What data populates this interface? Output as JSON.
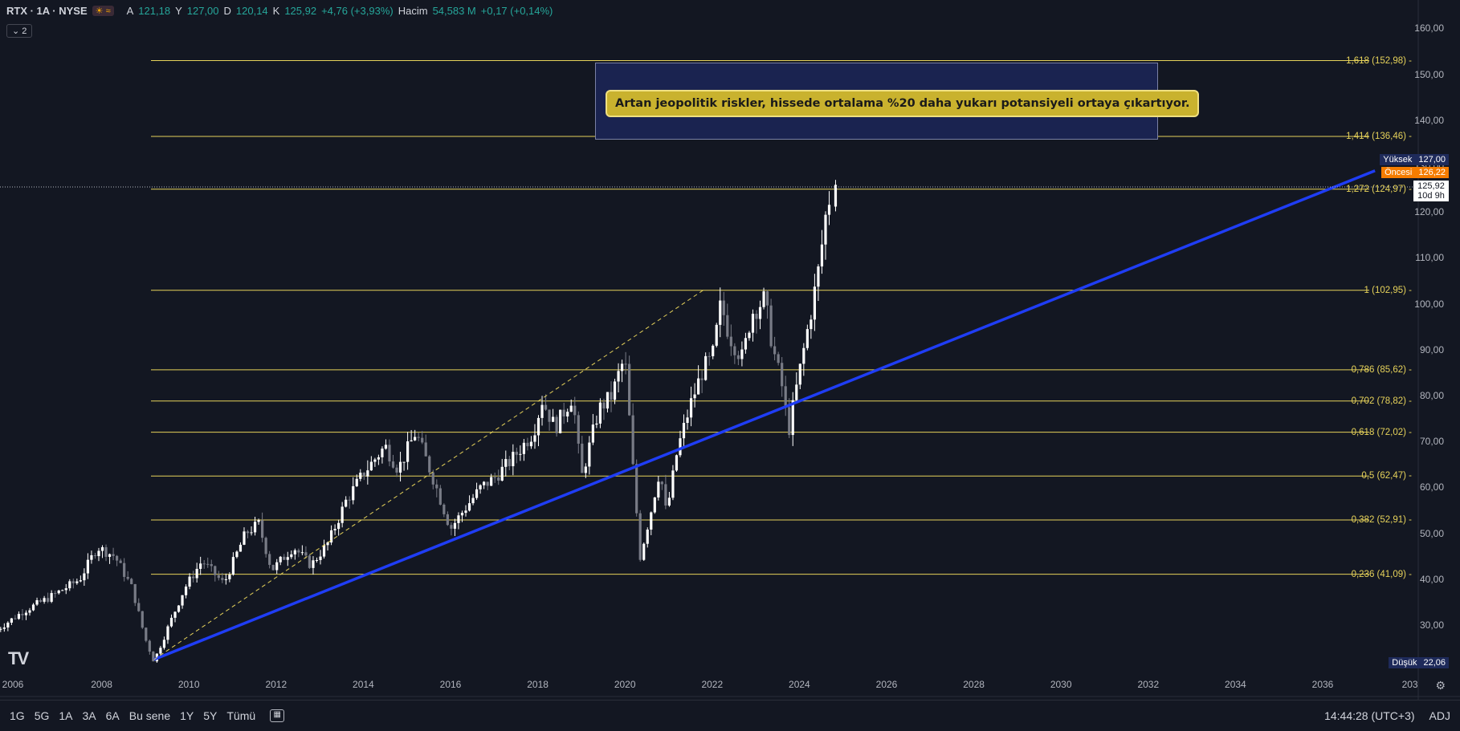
{
  "header": {
    "symbol": "RTX · 1A · NYSE",
    "open_label": "A",
    "open": "121,18",
    "high_label": "Y",
    "high": "127,00",
    "low_label": "D",
    "low": "120,14",
    "close_label": "K",
    "close": "125,92",
    "change": "+4,76 (+3,93%)",
    "volume_label": "Hacim",
    "volume": "54,583 M",
    "volume_change": "+0,17 (+0,14%)",
    "indicators_count": "2"
  },
  "price_labels": {
    "high_tag": "Yüksek",
    "high_val": "127,00",
    "prev_tag": "Öncesi",
    "prev_val": "126,22",
    "last_val": "125,92",
    "countdown": "10d 9h",
    "low_tag": "Düşük",
    "low_val": "22,06"
  },
  "callout_text": "Artan jeopolitik riskler, hissede ortalama %20 daha yukarı potansiyeli ortaya çıkartıyor.",
  "toolbar": {
    "ranges": [
      "1G",
      "5G",
      "1A",
      "3A",
      "6A",
      "Bu sene",
      "1Y",
      "5Y",
      "Tümü"
    ],
    "time": "14:44:28 (UTC+3)",
    "adj": "ADJ"
  },
  "colors": {
    "background": "#131722",
    "fib": "#e6d25a",
    "trend": "#1f3df5",
    "candle": "#ffffff",
    "callout": "#c9b22e"
  },
  "chart_data": {
    "type": "candlestick",
    "title": "",
    "y_ticks": [
      "30,00",
      "40,00",
      "50,00",
      "60,00",
      "70,00",
      "80,00",
      "90,00",
      "100,00",
      "110,00",
      "120,00",
      "130,00",
      "140,00",
      "150,00",
      "160,00"
    ],
    "x_ticks": [
      "2006",
      "2008",
      "2010",
      "2012",
      "2014",
      "2016",
      "2018",
      "2020",
      "2022",
      "2024",
      "2026",
      "2028",
      "2030",
      "2032",
      "2034",
      "2036",
      "203"
    ],
    "ylim": [
      14.5,
      163
    ],
    "fib_levels": [
      {
        "ratio": "1,618",
        "value": 152.98,
        "label": "1,618 (152,98)"
      },
      {
        "ratio": "1,414",
        "value": 136.46,
        "label": "1,414 (136,46)"
      },
      {
        "ratio": "1,272",
        "value": 124.97,
        "label": "1,272 (124,97)"
      },
      {
        "ratio": "1",
        "value": 102.95,
        "label": "1 (102,95)"
      },
      {
        "ratio": "0,786",
        "value": 85.62,
        "label": "0,786 (85,62)"
      },
      {
        "ratio": "0,702",
        "value": 78.82,
        "label": "0,702 (78,82)"
      },
      {
        "ratio": "0,618",
        "value": 72.02,
        "label": "0,618 (72,02)"
      },
      {
        "ratio": "0,5",
        "value": 62.47,
        "label": "0,5 (62,47)"
      },
      {
        "ratio": "0,382",
        "value": 52.91,
        "label": "0,382 (52,91)"
      },
      {
        "ratio": "0,236",
        "value": 41.09,
        "label": "0,236 (41,09)"
      }
    ],
    "trendline": {
      "start": [
        2009.2,
        22.5
      ],
      "end": [
        2037.2,
        129
      ]
    },
    "dashed_channel": {
      "start": [
        2009.2,
        22.5
      ],
      "end": [
        2021.8,
        103
      ]
    },
    "anchors": [
      [
        2005.6,
        29
      ],
      [
        2006.2,
        33
      ],
      [
        2006.8,
        36
      ],
      [
        2007.5,
        40
      ],
      [
        2007.9,
        47
      ],
      [
        2008.3,
        45
      ],
      [
        2008.7,
        38
      ],
      [
        2009.0,
        27
      ],
      [
        2009.2,
        22.1
      ],
      [
        2009.5,
        29
      ],
      [
        2009.9,
        38
      ],
      [
        2010.3,
        44
      ],
      [
        2010.8,
        39
      ],
      [
        2011.3,
        50
      ],
      [
        2011.6,
        52
      ],
      [
        2011.9,
        42
      ],
      [
        2012.4,
        47
      ],
      [
        2012.8,
        43
      ],
      [
        2013.2,
        48
      ],
      [
        2013.6,
        57
      ],
      [
        2014.0,
        63
      ],
      [
        2014.5,
        69
      ],
      [
        2014.8,
        64
      ],
      [
        2015.2,
        72
      ],
      [
        2015.6,
        62
      ],
      [
        2016.0,
        51
      ],
      [
        2016.3,
        55
      ],
      [
        2016.7,
        60
      ],
      [
        2017.0,
        62
      ],
      [
        2017.4,
        66
      ],
      [
        2017.9,
        72
      ],
      [
        2018.1,
        79
      ],
      [
        2018.4,
        73
      ],
      [
        2018.8,
        80
      ],
      [
        2019.0,
        62
      ],
      [
        2019.4,
        77
      ],
      [
        2019.7,
        80
      ],
      [
        2019.9,
        86
      ],
      [
        2020.0,
        88
      ],
      [
        2020.2,
        62
      ],
      [
        2020.35,
        45
      ],
      [
        2020.6,
        55
      ],
      [
        2020.8,
        64
      ],
      [
        2020.95,
        54
      ],
      [
        2021.2,
        68
      ],
      [
        2021.5,
        78
      ],
      [
        2021.8,
        86
      ],
      [
        2022.0,
        88
      ],
      [
        2022.2,
        100
      ],
      [
        2022.4,
        93
      ],
      [
        2022.7,
        88
      ],
      [
        2022.9,
        98
      ],
      [
        2023.2,
        101
      ],
      [
        2023.4,
        90
      ],
      [
        2023.6,
        82
      ],
      [
        2023.75,
        72
      ],
      [
        2023.9,
        80
      ],
      [
        2024.1,
        90
      ],
      [
        2024.3,
        100
      ],
      [
        2024.45,
        108
      ],
      [
        2024.6,
        119
      ],
      [
        2024.75,
        125.9
      ]
    ],
    "last": {
      "open": 121.18,
      "high": 127.0,
      "low": 120.14,
      "close": 125.92
    }
  }
}
